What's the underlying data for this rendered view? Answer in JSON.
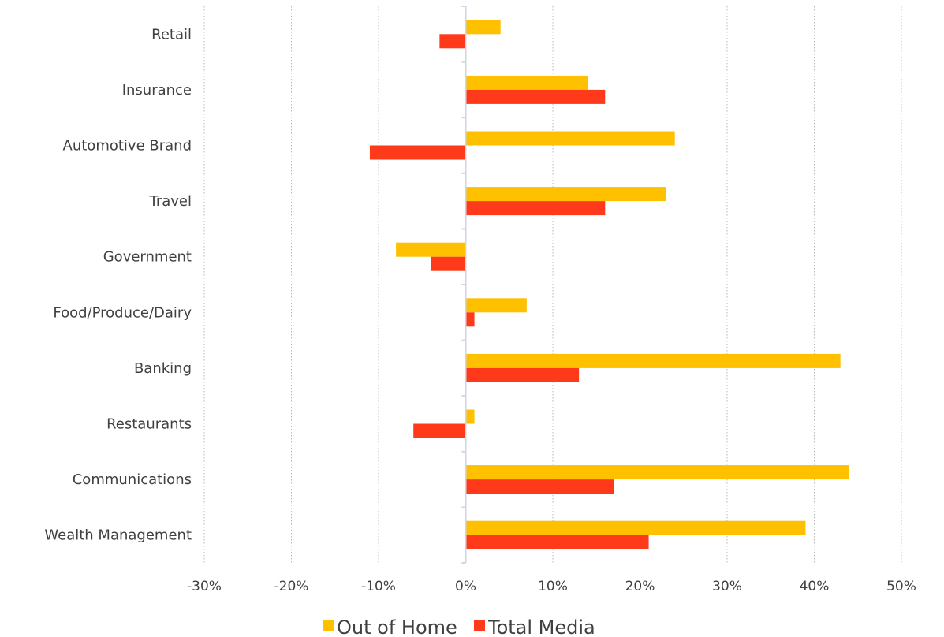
{
  "chart_data": {
    "type": "bar",
    "orientation": "horizontal",
    "categories": [
      "Retail",
      "Insurance",
      "Automotive Brand",
      "Travel",
      "Government",
      "Food/Produce/Dairy",
      "Banking",
      "Restaurants",
      "Communications",
      "Wealth Management"
    ],
    "series": [
      {
        "name": "Out of Home",
        "color": "#FFC000",
        "values": [
          4,
          14,
          24,
          23,
          -8,
          7,
          43,
          1,
          44,
          39
        ]
      },
      {
        "name": "Total Media",
        "color": "#FF3A1B",
        "values": [
          -3,
          16,
          -11,
          16,
          -4,
          1,
          13,
          -6,
          17,
          21
        ]
      }
    ],
    "x_ticks": [
      "-30%",
      "-20%",
      "-10%",
      "0%",
      "10%",
      "20%",
      "30%",
      "40%",
      "50%"
    ],
    "xlim": [
      -30,
      50
    ],
    "unit": "%",
    "grid": "vertical-dotted",
    "legend_position": "bottom"
  }
}
